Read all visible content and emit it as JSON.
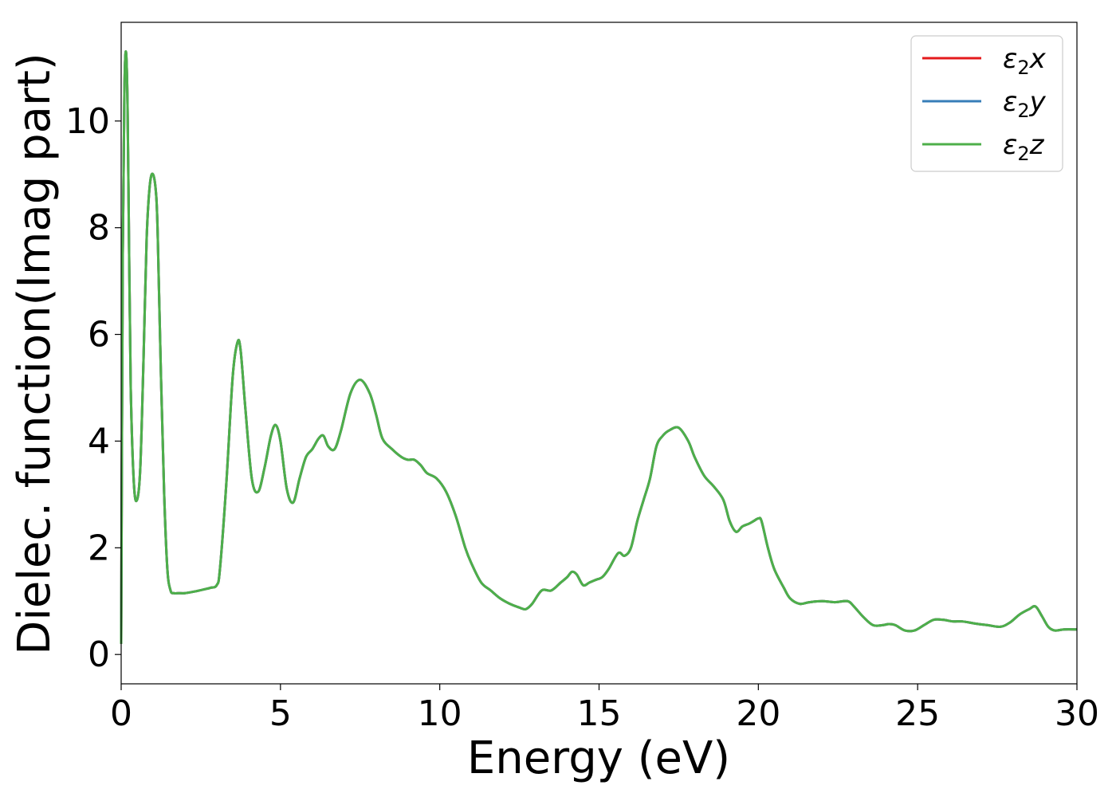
{
  "chart_data": {
    "type": "line",
    "xlabel": "Energy (eV)",
    "ylabel": "Dielec. function(Imag part)",
    "xlim": [
      0,
      30
    ],
    "ylim": [
      -0.55,
      11.85
    ],
    "xticks": [
      "0",
      "5",
      "10",
      "15",
      "20",
      "25",
      "30"
    ],
    "yticks": [
      "0",
      "2",
      "4",
      "6",
      "8",
      "10"
    ],
    "legend_position": "top-right",
    "grid": false,
    "colors": {
      "x": "#e41a1c",
      "y": "#377eb8",
      "z": "#4daf4a"
    },
    "series": [
      {
        "name": "ε2x",
        "base": "ε",
        "sub": "2",
        "comp": "x",
        "color": "#e41a1c"
      },
      {
        "name": "ε2y",
        "base": "ε",
        "sub": "2",
        "comp": "y",
        "color": "#377eb8"
      },
      {
        "name": "ε2z",
        "base": "ε",
        "sub": "2",
        "comp": "z",
        "color": "#4daf4a"
      }
    ],
    "x": [
      0,
      0.05,
      0.1,
      0.15,
      0.2,
      0.25,
      0.3,
      0.4,
      0.5,
      0.6,
      0.7,
      0.8,
      0.9,
      1.0,
      1.1,
      1.15,
      1.25,
      1.35,
      1.45,
      1.55,
      1.65,
      1.8,
      2.0,
      2.3,
      2.6,
      2.8,
      3.0,
      3.1,
      3.3,
      3.5,
      3.65,
      3.75,
      3.9,
      4.1,
      4.3,
      4.5,
      4.7,
      4.85,
      5.0,
      5.2,
      5.4,
      5.6,
      5.8,
      6.0,
      6.2,
      6.35,
      6.5,
      6.7,
      6.9,
      7.2,
      7.5,
      7.8,
      8.0,
      8.2,
      8.5,
      8.8,
      9.0,
      9.2,
      9.4,
      9.6,
      9.9,
      10.2,
      10.5,
      10.8,
      11.0,
      11.3,
      11.6,
      11.9,
      12.2,
      12.5,
      12.7,
      12.9,
      13.2,
      13.5,
      13.8,
      14.0,
      14.15,
      14.3,
      14.5,
      14.7,
      14.9,
      15.1,
      15.3,
      15.6,
      15.8,
      16.0,
      16.2,
      16.4,
      16.6,
      16.8,
      17.0,
      17.2,
      17.5,
      17.8,
      18.0,
      18.3,
      18.6,
      18.9,
      19.1,
      19.3,
      19.5,
      19.7,
      19.85,
      20.0,
      20.1,
      20.3,
      20.5,
      20.8,
      21.0,
      21.3,
      21.6,
      22.0,
      22.4,
      22.8,
      23.0,
      23.3,
      23.6,
      23.9,
      24.1,
      24.3,
      24.6,
      24.9,
      25.2,
      25.5,
      25.8,
      26.1,
      26.4,
      26.8,
      27.2,
      27.6,
      27.9,
      28.2,
      28.5,
      28.7,
      28.9,
      29.1,
      29.3,
      29.6,
      30.0
    ],
    "y": [
      0.2,
      7.5,
      10.5,
      11.3,
      10.3,
      7.5,
      5.0,
      3.2,
      2.9,
      3.5,
      5.5,
      7.8,
      8.8,
      9.0,
      8.6,
      7.8,
      5.2,
      3.0,
      1.6,
      1.2,
      1.15,
      1.15,
      1.15,
      1.18,
      1.22,
      1.25,
      1.3,
      1.6,
      3.2,
      5.2,
      5.85,
      5.7,
      4.6,
      3.3,
      3.05,
      3.5,
      4.1,
      4.3,
      4.0,
      3.1,
      2.85,
      3.3,
      3.7,
      3.85,
      4.05,
      4.1,
      3.9,
      3.85,
      4.2,
      4.9,
      5.15,
      4.9,
      4.5,
      4.05,
      3.85,
      3.7,
      3.65,
      3.65,
      3.55,
      3.4,
      3.3,
      3.05,
      2.6,
      2.0,
      1.7,
      1.35,
      1.2,
      1.05,
      0.95,
      0.88,
      0.85,
      0.95,
      1.2,
      1.2,
      1.35,
      1.45,
      1.55,
      1.5,
      1.3,
      1.35,
      1.4,
      1.45,
      1.6,
      1.9,
      1.85,
      2.0,
      2.5,
      2.9,
      3.3,
      3.9,
      4.1,
      4.2,
      4.25,
      4.0,
      3.7,
      3.35,
      3.15,
      2.9,
      2.5,
      2.3,
      2.4,
      2.45,
      2.5,
      2.55,
      2.5,
      2.0,
      1.6,
      1.25,
      1.05,
      0.95,
      0.98,
      1.0,
      0.98,
      1.0,
      0.9,
      0.7,
      0.55,
      0.55,
      0.57,
      0.55,
      0.45,
      0.45,
      0.55,
      0.65,
      0.65,
      0.62,
      0.62,
      0.58,
      0.55,
      0.52,
      0.6,
      0.75,
      0.85,
      0.9,
      0.72,
      0.52,
      0.45,
      0.47,
      0.47
    ]
  }
}
